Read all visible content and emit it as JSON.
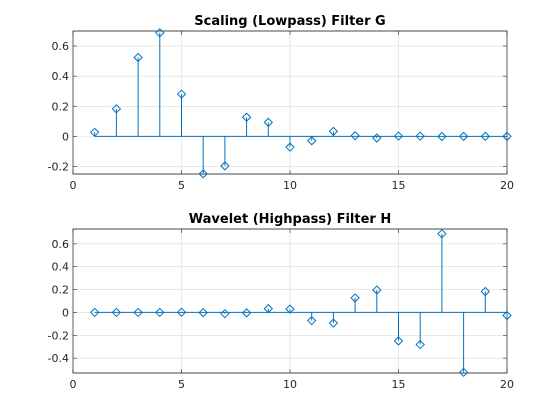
{
  "chart_data": [
    {
      "type": "stem",
      "title": "Scaling (Lowpass) Filter G",
      "xlabel": "",
      "ylabel": "",
      "xlim": [
        0,
        20
      ],
      "ylim": [
        -0.25,
        0.7
      ],
      "xticks": [
        0,
        5,
        10,
        15,
        20
      ],
      "yticks": [
        -0.2,
        0,
        0.2,
        0.4,
        0.6
      ],
      "grid": true,
      "color": "#0072BD",
      "x": [
        1,
        2,
        3,
        4,
        5,
        6,
        7,
        8,
        9,
        10,
        11,
        12,
        13,
        14,
        15,
        16,
        17,
        18,
        19,
        20
      ],
      "values": [
        0.027,
        0.183,
        0.524,
        0.688,
        0.281,
        -0.249,
        -0.196,
        0.127,
        0.093,
        -0.071,
        -0.029,
        0.033,
        0.004,
        -0.011,
        0.002,
        0.002,
        -0.001,
        0.0,
        0.0,
        0.0
      ]
    },
    {
      "type": "stem",
      "title": "Wavelet (Highpass) Filter H",
      "xlabel": "",
      "ylabel": "",
      "xlim": [
        0,
        20
      ],
      "ylim": [
        -0.53,
        0.73
      ],
      "xticks": [
        0,
        5,
        10,
        15,
        20
      ],
      "yticks": [
        -0.4,
        -0.2,
        0,
        0.2,
        0.4,
        0.6
      ],
      "grid": true,
      "color": "#0072BD",
      "x": [
        1,
        2,
        3,
        4,
        5,
        6,
        7,
        8,
        9,
        10,
        11,
        12,
        13,
        14,
        15,
        16,
        17,
        18,
        19,
        20
      ],
      "values": [
        0.0,
        0.0,
        0.0,
        0.0,
        0.002,
        -0.002,
        -0.011,
        -0.004,
        0.033,
        0.029,
        -0.071,
        -0.093,
        0.127,
        0.196,
        -0.249,
        -0.281,
        0.688,
        -0.524,
        0.183,
        -0.027
      ]
    }
  ]
}
